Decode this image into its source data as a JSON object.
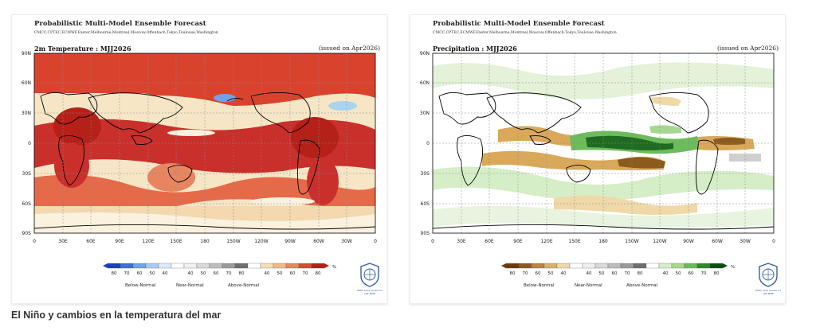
{
  "caption": "El Niño y cambios en la temperatura del mar",
  "panels": [
    {
      "id": "temperature",
      "title": "Probabilistic Multi-Model Ensemble Forecast",
      "centers": "CMCC,CPTEC,ECMWF,Exeter,Melbourne,Montreal,Moscow,Offenbach,Tokyo,Toulouse,Washington",
      "subtitle": "2m Temperature : MJJ2026",
      "issued": "(issued on Apr2026)",
      "lat_labels": [
        "90N",
        "60N",
        "30N",
        "0",
        "30S",
        "60S",
        "90S"
      ],
      "lon_labels": [
        "0",
        "30E",
        "60E",
        "90E",
        "120E",
        "150E",
        "180",
        "150W",
        "120W",
        "90W",
        "60W",
        "30W",
        "0"
      ],
      "colorbar": {
        "ticks": [
          "80",
          "70",
          "60",
          "50",
          "40",
          "",
          "40",
          "50",
          "60",
          "70",
          "80",
          "",
          "40",
          "50",
          "60",
          "70",
          "80"
        ],
        "unit": "%",
        "categories": [
          "Below-Normal",
          "Near-Normal",
          "Above-Normal"
        ],
        "colors": [
          "#1f3fbf",
          "#3d6fdc",
          "#6fa3e8",
          "#a6cbef",
          "#d9ecf7",
          "#ffffff",
          "#f0f0f0",
          "#d9d9d9",
          "#bdbdbd",
          "#9a9a9a",
          "#6e6e6e",
          "#ffffff",
          "#f5deb3",
          "#f2b98a",
          "#e88561",
          "#d94a32",
          "#b52018"
        ]
      },
      "palette": {
        "ocean": "#f4d9b0",
        "strong": "#c9302c",
        "mid": "#e56a4a",
        "light": "#f6e6c6",
        "pale": "#fbf1df",
        "cool": "#a9d4ec",
        "coolStrong": "#3a7bd5"
      }
    },
    {
      "id": "precipitation",
      "title": "Probabilistic Multi-Model Ensemble Forecast",
      "centers": "CMCC,CPTEC,ECMWF,Exeter,Melbourne,Montreal,Moscow,Offenbach,Tokyo,Toulouse,Washington",
      "subtitle": "Precipitation : MJJ2026",
      "issued": "(issued on Apr2026)",
      "lat_labels": [
        "90N",
        "60N",
        "30N",
        "0",
        "30S",
        "60S",
        "90S"
      ],
      "lon_labels": [
        "0",
        "30E",
        "60E",
        "90E",
        "120E",
        "150E",
        "180",
        "150W",
        "120W",
        "90W",
        "60W",
        "30W",
        "0"
      ],
      "colorbar": {
        "ticks": [
          "80",
          "70",
          "60",
          "50",
          "40",
          "",
          "40",
          "50",
          "60",
          "70",
          "80",
          "",
          "40",
          "50",
          "60",
          "70",
          "80"
        ],
        "unit": "%",
        "categories": [
          "Below-Normal",
          "Near-Normal",
          "Above-Normal"
        ],
        "colors": [
          "#6b3a0b",
          "#8c5a1c",
          "#b98538",
          "#d9b070",
          "#efd9a8",
          "#ffffff",
          "#f0f0f0",
          "#d9d9d9",
          "#bdbdbd",
          "#9a9a9a",
          "#6e6e6e",
          "#ffffff",
          "#d6eec8",
          "#a5d78e",
          "#6dbb5a",
          "#2f8a2c",
          "#0b4d14"
        ]
      },
      "palette": {
        "ocean": "#ffffff",
        "dry": "#d9a85a",
        "dryStrong": "#8c5a1c",
        "wet": "#b9e3a6",
        "wetStrong": "#1f6b22",
        "near": "#cfcfcf"
      }
    }
  ],
  "logo": {
    "caption": "WMO Lead Centre for LRF-MME"
  }
}
